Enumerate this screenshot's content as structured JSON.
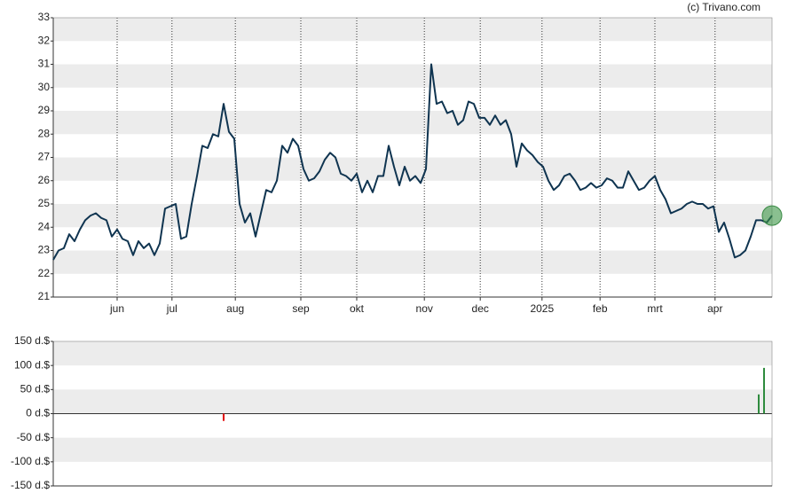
{
  "chart_data": [
    {
      "type": "line",
      "credit": "(c) Trivano.com",
      "color": "#0f3450",
      "x": [
        0,
        1,
        2,
        3,
        4,
        5,
        6,
        7,
        8,
        9,
        10,
        11,
        12,
        13,
        14,
        15,
        16,
        17,
        18,
        19,
        20,
        21,
        22,
        23,
        24,
        25,
        26,
        27,
        28,
        29,
        30,
        31,
        32,
        33,
        34,
        35,
        36,
        37,
        38,
        39,
        40,
        41,
        42,
        43,
        44,
        45,
        46,
        47,
        48,
        49,
        50,
        51,
        52,
        53,
        54,
        55,
        56,
        57,
        58,
        59,
        60,
        61,
        62,
        63,
        64,
        65,
        66,
        67,
        68,
        69,
        70,
        71,
        72,
        73,
        74,
        75,
        76,
        77,
        78,
        79,
        80,
        81,
        82,
        83,
        84,
        85,
        86,
        87,
        88,
        89,
        90,
        91,
        92,
        93,
        94,
        95,
        96,
        97,
        98,
        99,
        100,
        101,
        102,
        103,
        104,
        105,
        106,
        107,
        108,
        109,
        110,
        111,
        112,
        113,
        114,
        115,
        116,
        117,
        118,
        119,
        120,
        121,
        122,
        123,
        124,
        125,
        126,
        127,
        128,
        129,
        130,
        131,
        132,
        133,
        134,
        135
      ],
      "values": [
        22.6,
        23.0,
        23.1,
        23.7,
        23.4,
        23.9,
        24.3,
        24.5,
        24.6,
        24.4,
        24.3,
        23.6,
        23.9,
        23.5,
        23.4,
        22.8,
        23.4,
        23.1,
        23.3,
        22.8,
        23.3,
        24.8,
        24.9,
        25.0,
        23.5,
        23.6,
        25.0,
        26.2,
        27.5,
        27.4,
        28.0,
        27.9,
        29.3,
        28.1,
        27.8,
        25.0,
        24.2,
        24.6,
        23.6,
        24.6,
        25.6,
        25.5,
        26.0,
        27.5,
        27.2,
        27.8,
        27.5,
        26.5,
        26.0,
        26.1,
        26.4,
        26.9,
        27.2,
        27.0,
        26.3,
        26.2,
        26.0,
        26.3,
        25.5,
        26.0,
        25.5,
        26.2,
        26.2,
        27.5,
        26.6,
        25.8,
        26.6,
        26.0,
        26.2,
        25.9,
        26.5,
        31.0,
        29.3,
        29.4,
        28.9,
        29.0,
        28.4,
        28.6,
        29.4,
        29.3,
        28.7,
        28.7,
        28.4,
        28.8,
        28.4,
        28.6,
        28.0,
        26.6,
        27.6,
        27.3,
        27.1,
        26.8,
        26.6,
        26.0,
        25.6,
        25.8,
        26.2,
        26.3,
        26.0,
        25.6,
        25.7,
        25.9,
        25.7,
        25.8,
        26.1,
        26.0,
        25.7,
        25.7,
        26.4,
        26.0,
        25.6,
        25.7,
        26.0,
        26.2,
        25.6,
        25.2,
        24.6,
        24.7,
        24.8,
        25.0,
        25.1,
        25.0,
        25.0,
        24.8,
        24.9,
        23.8,
        24.2,
        23.5,
        22.7,
        22.8,
        23.0,
        23.6,
        24.3,
        24.3,
        24.2,
        24.5
      ],
      "xlim": [
        0,
        135
      ],
      "xticks": [
        {
          "value": 12,
          "label": "jun"
        },
        {
          "value": 22.3,
          "label": "jul"
        },
        {
          "value": 34.2,
          "label": "aug"
        },
        {
          "value": 46.5,
          "label": "sep"
        },
        {
          "value": 57,
          "label": "okt"
        },
        {
          "value": 69.7,
          "label": "nov"
        },
        {
          "value": 80.2,
          "label": "dec"
        },
        {
          "value": 91.8,
          "label": "2025"
        },
        {
          "value": 102.7,
          "label": "feb"
        },
        {
          "value": 113,
          "label": "mrt"
        },
        {
          "value": 124.3,
          "label": "apr"
        }
      ],
      "ylim": [
        21,
        33
      ],
      "yticks": [
        21,
        22,
        23,
        24,
        25,
        26,
        27,
        28,
        29,
        30,
        31,
        32,
        33
      ],
      "xgrid": true,
      "band_stripes": true,
      "last_point_marker": true
    },
    {
      "type": "bar",
      "x": [
        32,
        132.5,
        133.5
      ],
      "values": [
        -15,
        40,
        95
      ],
      "positive_color": "#2e8b3e",
      "negative_color": "#e00000",
      "xlim": [
        0,
        135
      ],
      "ylim": [
        -150,
        150
      ],
      "yticks": [
        {
          "value": 150,
          "label": "150 d.$"
        },
        {
          "value": 100,
          "label": "100 d.$"
        },
        {
          "value": 50,
          "label": "50 d.$"
        },
        {
          "value": 0,
          "label": "0 d.$"
        },
        {
          "value": -50,
          "label": "-50 d.$"
        },
        {
          "value": -100,
          "label": "-100 d.$"
        },
        {
          "value": -150,
          "label": "-150 d.$"
        }
      ],
      "band_stripes": true,
      "zero_line": true
    }
  ]
}
